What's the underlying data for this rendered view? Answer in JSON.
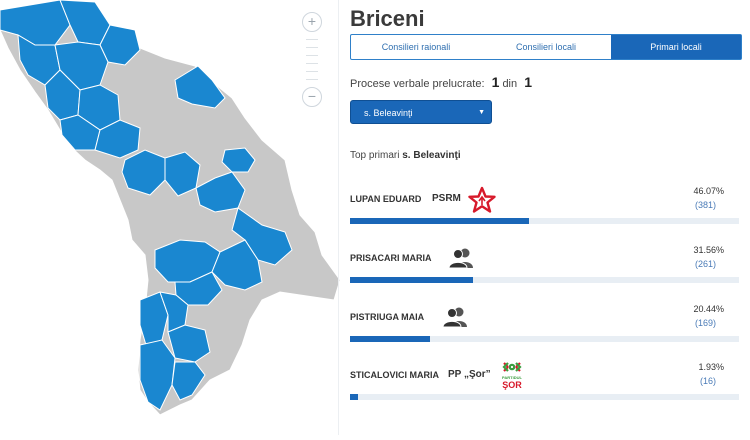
{
  "map": {
    "zoom_in_label": "+",
    "zoom_out_label": "−",
    "colors": {
      "highlight": "#1a87d0",
      "base": "#c8c8c8",
      "border": "#ffffff"
    }
  },
  "title": "Briceni",
  "tabs": [
    {
      "label": "Consilieri raionali",
      "active": false
    },
    {
      "label": "Consilieri locali",
      "active": false
    },
    {
      "label": "Primari locali",
      "active": true
    }
  ],
  "processed": {
    "label": "Procese verbale prelucrate:",
    "done": "1",
    "separator": "din",
    "total": "1"
  },
  "locality_select": {
    "value": "s. Beleavinţi"
  },
  "top": {
    "label": "Top primari",
    "locality": "s. Beleavinţi"
  },
  "candidates": [
    {
      "name": "LUPAN EDUARD",
      "party": "PSRM",
      "party_icon": "psrm-star-logo",
      "percent": "46.07%",
      "votes": "(381)",
      "share": 0.4607
    },
    {
      "name": "PRISACARI MARIA",
      "party": "",
      "party_icon": "independent-person-icon",
      "percent": "31.56%",
      "votes": "(261)",
      "share": 0.3156
    },
    {
      "name": "PISTRIUGA MAIA",
      "party": "",
      "party_icon": "independent-person-icon",
      "percent": "20.44%",
      "votes": "(169)",
      "share": 0.2044
    },
    {
      "name": "STICALOVICI MARIA",
      "party": "PP „Şor”",
      "party_icon": "partidul-sor-logo",
      "party_logo_text": "PARTIDUL ŞOR",
      "percent": "1.93%",
      "votes": "(16)",
      "share": 0.0193
    }
  ],
  "colors": {
    "accent": "#1a67b8",
    "bar_track": "#e8eef4",
    "psrm_red": "#d7192a",
    "sor_green": "#3a9c3f",
    "sor_red": "#d7192a"
  }
}
